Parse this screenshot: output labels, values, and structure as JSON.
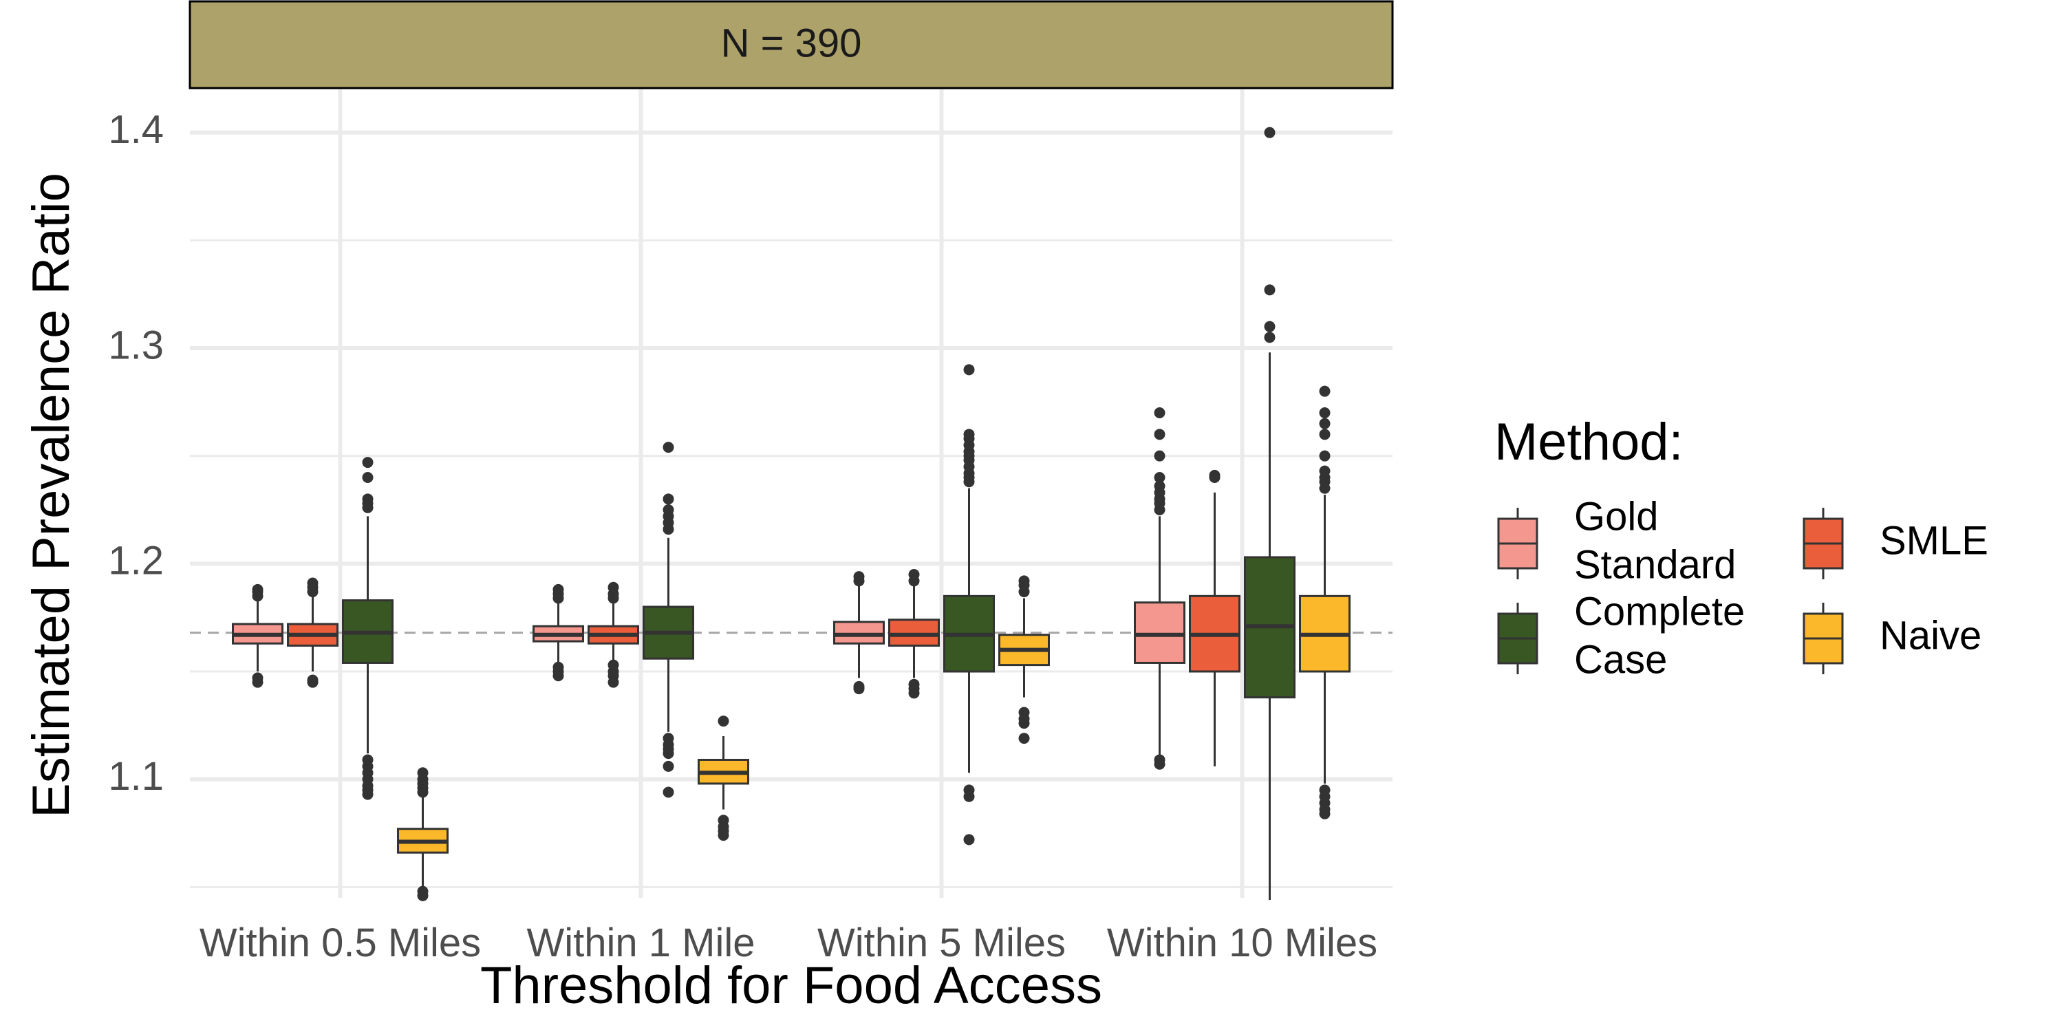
{
  "chart_data": {
    "type": "boxplot",
    "facet_label": "N = 390",
    "xlabel": "Threshold for Food Access",
    "ylabel": "Estimated Prevalence Ratio",
    "ylim": [
      1.045,
      1.42
    ],
    "yticks": [
      1.1,
      1.2,
      1.3,
      1.4
    ],
    "ytick_labels": [
      "1.1",
      "1.2",
      "1.3",
      "1.4"
    ],
    "reference_line": 1.168,
    "categories": [
      "Within 0.5 Miles",
      "Within 1 Mile",
      "Within 5 Miles",
      "Within 10 Miles"
    ],
    "legend": {
      "title": "Method:",
      "position": "right",
      "entries": [
        {
          "key": "gold",
          "label_lines": [
            "Gold",
            "Standard"
          ]
        },
        {
          "key": "smle",
          "label_lines": [
            "SMLE"
          ]
        },
        {
          "key": "cc",
          "label_lines": [
            "Complete",
            "Case"
          ]
        },
        {
          "key": "naive",
          "label_lines": [
            "Naive"
          ]
        }
      ]
    },
    "colors": {
      "Gold Standard": "#F4978E",
      "SMLE": "#EA5E3C",
      "Complete Case": "#385723",
      "Naive": "#FBB82B",
      "facet_strip": "#ADA26A"
    },
    "series": [
      {
        "name": "Gold Standard",
        "boxes": [
          {
            "whisker_low": 1.15,
            "q1": 1.163,
            "median": 1.167,
            "q3": 1.172,
            "whisker_high": 1.184,
            "outliers": [
              1.145,
              1.147,
              1.185,
              1.187,
              1.188
            ]
          },
          {
            "whisker_low": 1.154,
            "q1": 1.164,
            "median": 1.167,
            "q3": 1.171,
            "whisker_high": 1.182,
            "outliers": [
              1.148,
              1.15,
              1.152,
              1.184,
              1.186,
              1.188
            ]
          },
          {
            "whisker_low": 1.147,
            "q1": 1.163,
            "median": 1.167,
            "q3": 1.173,
            "whisker_high": 1.19,
            "outliers": [
              1.142,
              1.143,
              1.192,
              1.194
            ]
          },
          {
            "whisker_low": 1.11,
            "q1": 1.154,
            "median": 1.167,
            "q3": 1.182,
            "whisker_high": 1.222,
            "outliers": [
              1.107,
              1.109,
              1.225,
              1.228,
              1.23,
              1.233,
              1.236,
              1.24,
              1.25,
              1.26,
              1.27
            ]
          }
        ]
      },
      {
        "name": "SMLE",
        "boxes": [
          {
            "whisker_low": 1.15,
            "q1": 1.162,
            "median": 1.167,
            "q3": 1.172,
            "whisker_high": 1.185,
            "outliers": [
              1.145,
              1.146,
              1.187,
              1.189,
              1.191
            ]
          },
          {
            "whisker_low": 1.154,
            "q1": 1.163,
            "median": 1.167,
            "q3": 1.171,
            "whisker_high": 1.182,
            "outliers": [
              1.145,
              1.148,
              1.15,
              1.153,
              1.184,
              1.186,
              1.189
            ]
          },
          {
            "whisker_low": 1.147,
            "q1": 1.162,
            "median": 1.167,
            "q3": 1.174,
            "whisker_high": 1.19,
            "outliers": [
              1.14,
              1.142,
              1.144,
              1.192,
              1.195
            ]
          },
          {
            "whisker_low": 1.106,
            "q1": 1.15,
            "median": 1.167,
            "q3": 1.185,
            "whisker_high": 1.233,
            "outliers": [
              1.24,
              1.241
            ]
          }
        ]
      },
      {
        "name": "Complete Case",
        "boxes": [
          {
            "whisker_low": 1.112,
            "q1": 1.154,
            "median": 1.168,
            "q3": 1.183,
            "whisker_high": 1.222,
            "outliers": [
              1.093,
              1.095,
              1.097,
              1.1,
              1.103,
              1.106,
              1.109,
              1.226,
              1.228,
              1.23,
              1.24,
              1.247
            ]
          },
          {
            "whisker_low": 1.122,
            "q1": 1.156,
            "median": 1.168,
            "q3": 1.18,
            "whisker_high": 1.212,
            "outliers": [
              1.094,
              1.106,
              1.112,
              1.114,
              1.116,
              1.119,
              1.216,
              1.219,
              1.222,
              1.225,
              1.23,
              1.254
            ]
          },
          {
            "whisker_low": 1.103,
            "q1": 1.15,
            "median": 1.167,
            "q3": 1.185,
            "whisker_high": 1.235,
            "outliers": [
              1.072,
              1.092,
              1.095,
              1.238,
              1.24,
              1.242,
              1.245,
              1.248,
              1.25,
              1.252,
              1.255,
              1.258,
              1.26,
              1.29
            ]
          },
          {
            "whisker_low": 1.044,
            "q1": 1.138,
            "median": 1.171,
            "q3": 1.203,
            "whisker_high": 1.298,
            "outliers": [
              1.305,
              1.31,
              1.327,
              1.4
            ]
          }
        ]
      },
      {
        "name": "Naive",
        "boxes": [
          {
            "whisker_low": 1.05,
            "q1": 1.066,
            "median": 1.071,
            "q3": 1.077,
            "whisker_high": 1.092,
            "outliers": [
              1.046,
              1.048,
              1.094,
              1.096,
              1.098,
              1.1,
              1.103
            ]
          },
          {
            "whisker_low": 1.086,
            "q1": 1.098,
            "median": 1.103,
            "q3": 1.109,
            "whisker_high": 1.12,
            "outliers": [
              1.074,
              1.076,
              1.078,
              1.081,
              1.127
            ]
          },
          {
            "whisker_low": 1.138,
            "q1": 1.153,
            "median": 1.16,
            "q3": 1.167,
            "whisker_high": 1.184,
            "outliers": [
              1.119,
              1.126,
              1.128,
              1.131,
              1.187,
              1.19,
              1.192
            ]
          },
          {
            "whisker_low": 1.098,
            "q1": 1.15,
            "median": 1.167,
            "q3": 1.185,
            "whisker_high": 1.232,
            "outliers": [
              1.084,
              1.086,
              1.089,
              1.092,
              1.095,
              1.235,
              1.238,
              1.24,
              1.243,
              1.25,
              1.26,
              1.265,
              1.27,
              1.28
            ]
          }
        ]
      }
    ]
  }
}
